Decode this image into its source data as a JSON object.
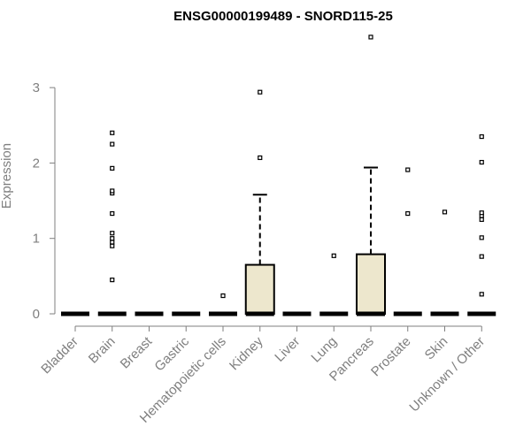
{
  "chart_data": {
    "type": "boxplot",
    "title": "ENSG00000199489 - SNORD115-25",
    "xlabel": "",
    "ylabel": "Expression",
    "ylim": [
      0,
      3.7
    ],
    "yticks": [
      0,
      1,
      2,
      3
    ],
    "grid": false,
    "box_color": "#ede7cd",
    "categories": [
      "Bladder",
      "Brain",
      "Breast",
      "Gastric",
      "Hematopoietic cells",
      "Kidney",
      "Liver",
      "Lung",
      "Pancreas",
      "Prostate",
      "Skin",
      "Unknown / Other"
    ],
    "boxes": [
      {
        "q1": 0,
        "median": 0,
        "q3": 0,
        "whisker_low": 0,
        "whisker_high": 0,
        "outliers": []
      },
      {
        "q1": 0,
        "median": 0,
        "q3": 0,
        "whisker_low": 0,
        "whisker_high": 0,
        "outliers": [
          0.45,
          0.9,
          0.95,
          1.0,
          1.07,
          1.33,
          1.6,
          1.63,
          1.93,
          2.25,
          2.4
        ]
      },
      {
        "q1": 0,
        "median": 0,
        "q3": 0,
        "whisker_low": 0,
        "whisker_high": 0,
        "outliers": []
      },
      {
        "q1": 0,
        "median": 0,
        "q3": 0,
        "whisker_low": 0,
        "whisker_high": 0,
        "outliers": []
      },
      {
        "q1": 0,
        "median": 0,
        "q3": 0,
        "whisker_low": 0,
        "whisker_high": 0,
        "outliers": [
          0.24
        ]
      },
      {
        "q1": 0,
        "median": 0,
        "q3": 0.65,
        "whisker_low": 0,
        "whisker_high": 1.58,
        "outliers": [
          2.07,
          2.94
        ]
      },
      {
        "q1": 0,
        "median": 0,
        "q3": 0,
        "whisker_low": 0,
        "whisker_high": 0,
        "outliers": []
      },
      {
        "q1": 0,
        "median": 0,
        "q3": 0,
        "whisker_low": 0,
        "whisker_high": 0,
        "outliers": [
          0.77
        ]
      },
      {
        "q1": 0,
        "median": 0,
        "q3": 0.79,
        "whisker_low": 0,
        "whisker_high": 1.94,
        "outliers": [
          3.67
        ]
      },
      {
        "q1": 0,
        "median": 0,
        "q3": 0,
        "whisker_low": 0,
        "whisker_high": 0,
        "outliers": [
          1.33,
          1.91
        ]
      },
      {
        "q1": 0,
        "median": 0,
        "q3": 0,
        "whisker_low": 0,
        "whisker_high": 0,
        "outliers": [
          1.35
        ]
      },
      {
        "q1": 0,
        "median": 0,
        "q3": 0,
        "whisker_low": 0,
        "whisker_high": 0,
        "outliers": [
          0.26,
          0.76,
          1.01,
          1.25,
          1.3,
          1.34,
          2.01,
          2.35
        ]
      }
    ]
  }
}
